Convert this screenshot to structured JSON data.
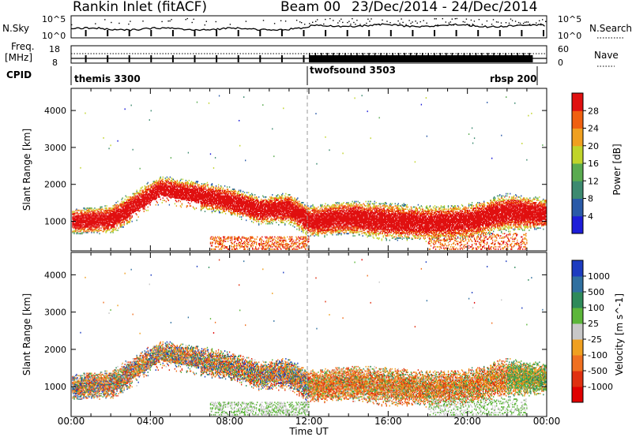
{
  "header": {
    "station": "Rankin Inlet (fitACF)",
    "beam": "Beam 00",
    "date_range": "23/Dec/2014 - 24/Dec/2014"
  },
  "top_panels": {
    "nsky_label": "N.Sky",
    "nsky_ticks": [
      "10^5",
      "10^0"
    ],
    "nsearch_label": "N.Search",
    "nsearch_ticks": [
      "10^5",
      "10^0"
    ],
    "freq_label_1": "Freq.",
    "freq_label_2": "[MHz]",
    "freq_ticks": [
      "18",
      "8"
    ],
    "nave_label": "Nave",
    "nave_ticks": [
      "60",
      "0"
    ],
    "cpid_label": "CPID",
    "cpid_segments": [
      {
        "name": "themis 3300"
      },
      {
        "name": "twofsound 3503"
      },
      {
        "name": "rbsp 200"
      }
    ]
  },
  "chart_data": [
    {
      "type": "heatmap",
      "title": "Power",
      "ylabel": "Slant Range [km]",
      "xlabel": "Time UT",
      "x_ticks": [
        "00:00",
        "04:00",
        "08:00",
        "12:00",
        "16:00",
        "20:00",
        "00:00"
      ],
      "y_ticks": [
        1000,
        2000,
        3000,
        4000
      ],
      "ylim": [
        200,
        4600
      ],
      "xlim_hours": [
        0,
        24
      ],
      "colorbar": {
        "label": "Power [dB]",
        "ticks": [
          "4",
          "8",
          "12",
          "16",
          "20",
          "24",
          "28"
        ],
        "range": [
          0,
          32
        ],
        "colors": [
          "#1d1dd8",
          "#2a5aa8",
          "#3d8a70",
          "#5aab50",
          "#c0d42a",
          "#f0a020",
          "#f06010",
          "#e01010"
        ]
      },
      "main_band": [
        {
          "t": 0.0,
          "center": 1000,
          "width": 400
        },
        {
          "t": 2.0,
          "center": 1050,
          "width": 450
        },
        {
          "t": 3.5,
          "center": 1500,
          "width": 500
        },
        {
          "t": 4.5,
          "center": 1850,
          "width": 450
        },
        {
          "t": 6.0,
          "center": 1700,
          "width": 500
        },
        {
          "t": 7.0,
          "center": 1650,
          "width": 450
        },
        {
          "t": 8.0,
          "center": 1550,
          "width": 450
        },
        {
          "t": 9.5,
          "center": 1300,
          "width": 450
        },
        {
          "t": 11.0,
          "center": 1350,
          "width": 500
        },
        {
          "t": 12.0,
          "center": 1000,
          "width": 500
        },
        {
          "t": 14.0,
          "center": 1100,
          "width": 550
        },
        {
          "t": 16.0,
          "center": 1000,
          "width": 600
        },
        {
          "t": 18.0,
          "center": 950,
          "width": 550
        },
        {
          "t": 20.0,
          "center": 1000,
          "width": 550
        },
        {
          "t": 22.0,
          "center": 1250,
          "width": 600
        },
        {
          "t": 24.0,
          "center": 1200,
          "width": 500
        }
      ]
    },
    {
      "type": "heatmap",
      "title": "Velocity",
      "ylabel": "Slant Range [km]",
      "xlabel": "Time UT",
      "x_ticks": [
        "00:00",
        "04:00",
        "08:00",
        "12:00",
        "16:00",
        "20:00",
        "00:00"
      ],
      "y_ticks": [
        1000,
        2000,
        3000,
        4000
      ],
      "ylim": [
        200,
        4600
      ],
      "xlim_hours": [
        0,
        24
      ],
      "colorbar": {
        "label": "Velocity [m s^-1]",
        "ticks": [
          "1000",
          "500",
          "100",
          "25",
          "-25",
          "-100",
          "-500",
          "-1000"
        ],
        "colors": [
          "#1d3cc0",
          "#3070a0",
          "#2e8a5a",
          "#5cb63a",
          "#c8c8c8",
          "#f0a020",
          "#f07020",
          "#e03010",
          "#e00000"
        ]
      }
    }
  ],
  "time_axis": {
    "label": "Time UT",
    "ticks": [
      "00:00",
      "04:00",
      "08:00",
      "12:00",
      "16:00",
      "20:00",
      "00:00"
    ]
  }
}
